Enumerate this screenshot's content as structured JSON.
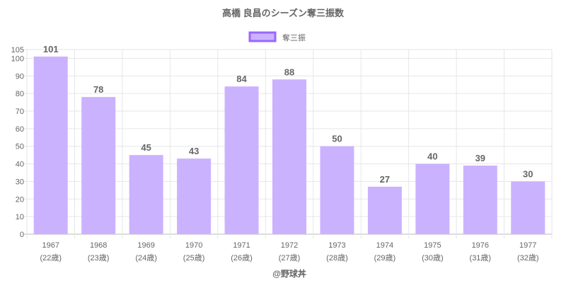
{
  "chart_data": {
    "type": "bar",
    "title": "高橋 良昌のシーズン奪三振数",
    "legend": {
      "label": "奪三振",
      "placement": "top"
    },
    "categories": [
      "1967",
      "1968",
      "1969",
      "1970",
      "1971",
      "1972",
      "1973",
      "1974",
      "1975",
      "1976",
      "1977"
    ],
    "sublabels": [
      "(22歳)",
      "(23歳)",
      "(24歳)",
      "(25歳)",
      "(26歳)",
      "(27歳)",
      "(28歳)",
      "(29歳)",
      "(30歳)",
      "(31歳)",
      "(32歳)"
    ],
    "values": [
      101,
      78,
      45,
      43,
      84,
      88,
      50,
      27,
      40,
      39,
      30
    ],
    "ylim": [
      0,
      105
    ],
    "yticks": [
      0,
      10,
      20,
      30,
      40,
      50,
      60,
      70,
      80,
      90,
      100,
      105
    ],
    "grid": true,
    "colors": {
      "bar": "#cbb2ff",
      "border": "#9966ff"
    }
  },
  "credit": "@野球丼"
}
